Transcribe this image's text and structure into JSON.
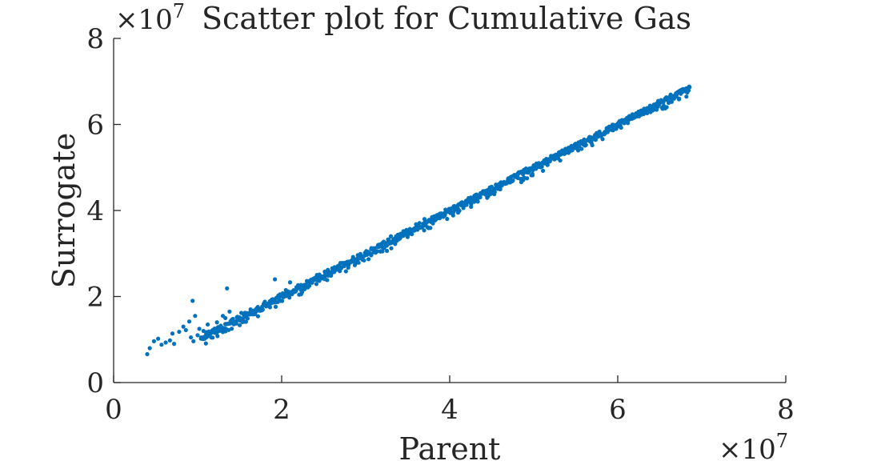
{
  "chart_data": {
    "type": "scatter",
    "title": "Scatter plot for Cumulative Gas",
    "xlabel": "Parent",
    "ylabel": "Surrogate",
    "x_multiplier_label": "×10",
    "x_multiplier_exp": "7",
    "y_multiplier_label": "×10",
    "y_multiplier_exp": "7",
    "xlim": [
      0,
      8
    ],
    "ylim": [
      0,
      8
    ],
    "x_ticks": [
      0,
      2,
      4,
      6,
      8
    ],
    "y_ticks": [
      0,
      2,
      4,
      6,
      8
    ],
    "x_tick_labels": [
      "0",
      "2",
      "4",
      "6",
      "8"
    ],
    "y_tick_labels": [
      "0",
      "2",
      "4",
      "6",
      "8"
    ],
    "grid": false,
    "color": "#0072BD",
    "series": [
      {
        "points": [
          [
            0.4,
            0.66
          ],
          [
            0.43,
            0.8
          ],
          [
            0.48,
            0.96
          ],
          [
            0.53,
            1.02
          ],
          [
            0.57,
            0.88
          ],
          [
            0.62,
            0.93
          ],
          [
            0.67,
            0.98
          ],
          [
            0.7,
            1.14
          ],
          [
            0.72,
            0.9
          ],
          [
            0.78,
            1.18
          ],
          [
            0.83,
            1.3
          ],
          [
            0.86,
            1.22
          ],
          [
            0.9,
            1.42
          ],
          [
            0.92,
            1.05
          ],
          [
            0.94,
            1.9
          ],
          [
            0.95,
            0.96
          ],
          [
            0.97,
            1.55
          ],
          [
            1.0,
            1.1
          ],
          [
            1.02,
            1.25
          ],
          [
            1.04,
            1.02
          ],
          [
            1.07,
            1.2
          ],
          [
            1.1,
            1.05
          ],
          [
            1.12,
            1.35
          ],
          [
            1.15,
            1.15
          ],
          [
            1.2,
            1.25
          ],
          [
            1.23,
            1.4
          ],
          [
            1.27,
            1.22
          ],
          [
            1.3,
            1.55
          ],
          [
            1.33,
            1.5
          ],
          [
            1.35,
            2.19
          ],
          [
            1.38,
            1.65
          ],
          [
            1.42,
            1.48
          ],
          [
            1.45,
            1.4
          ],
          [
            1.52,
            1.62
          ],
          [
            1.58,
            1.55
          ],
          [
            1.63,
            1.7
          ],
          [
            1.7,
            1.72
          ],
          [
            1.8,
            1.88
          ],
          [
            1.92,
            2.4
          ],
          [
            2.1,
            2.33
          ],
          [
            2.05,
            2.15
          ],
          [
            1.98,
            2.05
          ],
          [
            2.2,
            2.25
          ],
          [
            2.3,
            2.36
          ],
          [
            2.42,
            2.5
          ],
          [
            2.55,
            2.62
          ],
          [
            2.7,
            2.78
          ],
          [
            2.85,
            2.92
          ],
          [
            3.0,
            3.02
          ],
          [
            3.15,
            3.2
          ],
          [
            3.2,
            3.05
          ],
          [
            3.3,
            3.4
          ],
          [
            3.45,
            3.52
          ],
          [
            3.55,
            3.45
          ],
          [
            3.6,
            3.68
          ],
          [
            3.7,
            3.8
          ],
          [
            3.8,
            3.7
          ],
          [
            3.95,
            4.02
          ],
          [
            4.05,
            4.1
          ],
          [
            4.1,
            3.95
          ],
          [
            4.25,
            4.3
          ],
          [
            4.4,
            4.45
          ],
          [
            4.55,
            4.6
          ],
          [
            4.7,
            4.75
          ],
          [
            4.85,
            4.9
          ],
          [
            5.0,
            5.05
          ],
          [
            5.15,
            5.2
          ],
          [
            5.3,
            5.35
          ],
          [
            5.45,
            5.5
          ],
          [
            5.6,
            5.65
          ],
          [
            5.75,
            5.8
          ],
          [
            5.9,
            5.95
          ],
          [
            6.05,
            6.1
          ],
          [
            6.2,
            6.22
          ],
          [
            6.35,
            6.38
          ],
          [
            6.5,
            6.52
          ],
          [
            6.6,
            6.62
          ],
          [
            6.7,
            6.7
          ],
          [
            6.78,
            6.78
          ],
          [
            6.85,
            6.88
          ]
        ]
      }
    ],
    "band": {
      "x_start": 1.05,
      "x_end": 6.85,
      "slope": 1.0,
      "intercept": 0.0,
      "spread": 0.06
    }
  }
}
